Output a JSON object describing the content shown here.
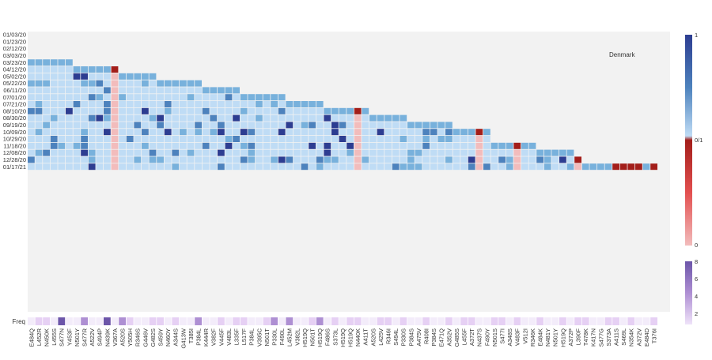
{
  "chart_data": {
    "type": "heatmap",
    "annotation": "Denmark",
    "dates": [
      "01/03/20",
      "01/23/20",
      "02/12/20",
      "03/03/20",
      "03/23/20",
      "04/12/20",
      "05/02/20",
      "05/22/20",
      "06/11/20",
      "07/01/20",
      "07/21/20",
      "08/10/20",
      "08/30/20",
      "09/19/20",
      "10/09/20",
      "10/29/20",
      "11/18/20",
      "12/08/20",
      "12/28/20",
      "01/17/21"
    ],
    "mutations": [
      "E484Q",
      "L452R",
      "N450K",
      "L455S",
      "S477N",
      "Y453F",
      "N501Y",
      "S477R",
      "A522V",
      "S494P",
      "N439K",
      "V367A",
      "A520S",
      "Y505H",
      "R346S",
      "G446V",
      "G482S",
      "S459Y",
      "N460Y",
      "A344S",
      "G413W",
      "T385I",
      "P384L",
      "K444R",
      "V382F",
      "V445F",
      "V483L",
      "L335F",
      "L517F",
      "P384L",
      "V395C",
      "N501T",
      "P330L",
      "F490L",
      "L452M",
      "V382L",
      "H519Q",
      "N501T",
      "H519Q",
      "F486S",
      "S373L",
      "H519Q",
      "H519Q",
      "N440K",
      "A411T",
      "A520S",
      "L425V",
      "R346I",
      "S494L",
      "P330S",
      "P384S",
      "A475V",
      "R408I",
      "P384S",
      "E471Q",
      "A352V",
      "G485S",
      "L455F",
      "A372T",
      "N437S",
      "F490Y",
      "N501S",
      "S477I",
      "A348S",
      "V483F",
      "V512I",
      "R346K",
      "E484K",
      "N481Y",
      "N501Y",
      "H519Q",
      "A372P",
      "L390F",
      "T478K",
      "K417N",
      "S477G",
      "S373A",
      "A411S",
      "S469L",
      "N354K",
      "A372V",
      "E484D",
      "T376I"
    ],
    "colorbar": {
      "ticks": [
        "1",
        "0/1",
        "0"
      ],
      "freq_ticks": [
        "8",
        "6",
        "4",
        "2"
      ],
      "freq_label": "Freq"
    },
    "colors": {
      "light": "#bfdcf5",
      "medium": "#78b1dc",
      "dark": "#4d82bd",
      "deep": "#2d3d91",
      "red": "#a31e1a",
      "pink": "#f2bcbc",
      "freq_light": "#e6d0f4",
      "freq_mid": "#ae8fd3",
      "freq_dark": "#6c55a9",
      "bg": "#f2f2f2"
    }
  }
}
